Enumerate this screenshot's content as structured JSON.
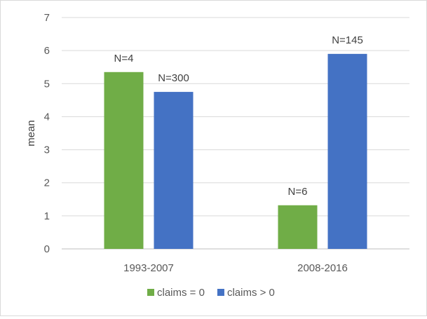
{
  "chart_data": {
    "type": "bar",
    "title": "",
    "xlabel": "",
    "ylabel": "mean",
    "ylim": [
      0,
      7
    ],
    "yticks": [
      0,
      1,
      2,
      3,
      4,
      5,
      6,
      7
    ],
    "grid": true,
    "legend_position": "bottom",
    "categories": [
      "1993-2007",
      "2008-2016"
    ],
    "series": [
      {
        "name": "claims = 0",
        "color": "#70ad47",
        "values": [
          5.35,
          1.32
        ],
        "labels": [
          "N=4",
          "N=6"
        ]
      },
      {
        "name": "claims > 0",
        "color": "#4472c4",
        "values": [
          4.75,
          5.9
        ],
        "labels": [
          "N=300",
          "N=145"
        ]
      }
    ]
  }
}
